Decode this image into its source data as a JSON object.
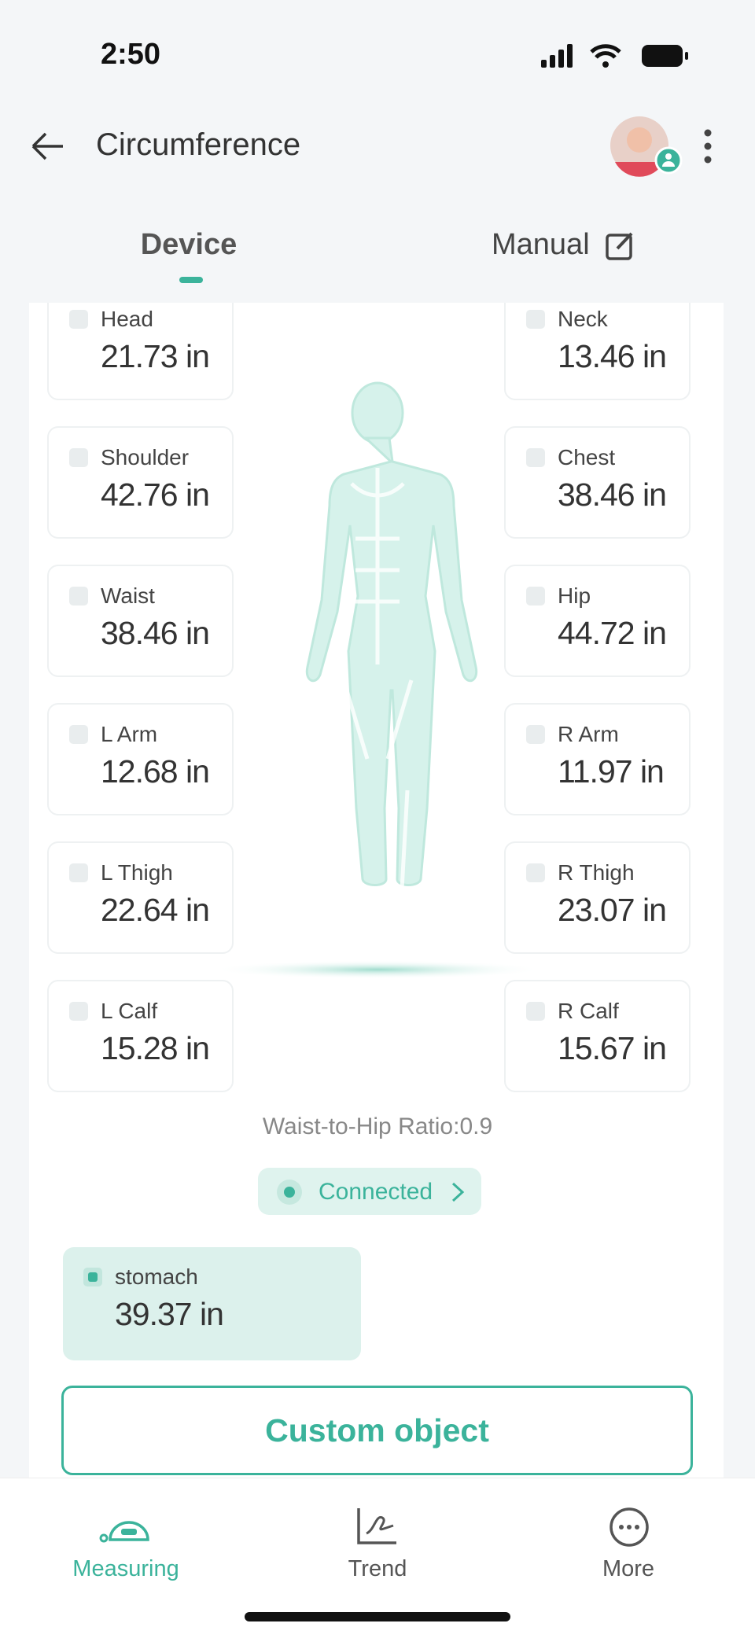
{
  "status_bar": {
    "time": "2:50"
  },
  "header": {
    "title": "Circumference"
  },
  "tabs": [
    "Device",
    "Manual"
  ],
  "measurements": [
    {
      "label": "Head",
      "value": "21.73 in"
    },
    {
      "label": "Neck",
      "value": "13.46 in"
    },
    {
      "label": "Shoulder",
      "value": "42.76 in"
    },
    {
      "label": "Chest",
      "value": "38.46 in"
    },
    {
      "label": "Waist",
      "value": "38.46 in"
    },
    {
      "label": "Hip",
      "value": "44.72 in"
    },
    {
      "label": "L Arm",
      "value": "12.68 in"
    },
    {
      "label": "R Arm",
      "value": "11.97 in"
    },
    {
      "label": "L Thigh",
      "value": "22.64 in"
    },
    {
      "label": "R Thigh",
      "value": "23.07 in"
    },
    {
      "label": "L Calf",
      "value": "15.28 in"
    },
    {
      "label": "R Calf",
      "value": "15.67 in"
    }
  ],
  "ratio": "Waist-to-Hip Ratio:0.9",
  "connection": "Connected",
  "custom_measurement": {
    "label": "stomach",
    "value": "39.37 in"
  },
  "button": "Custom object",
  "nav": [
    "Measuring",
    "Trend",
    "More"
  ]
}
